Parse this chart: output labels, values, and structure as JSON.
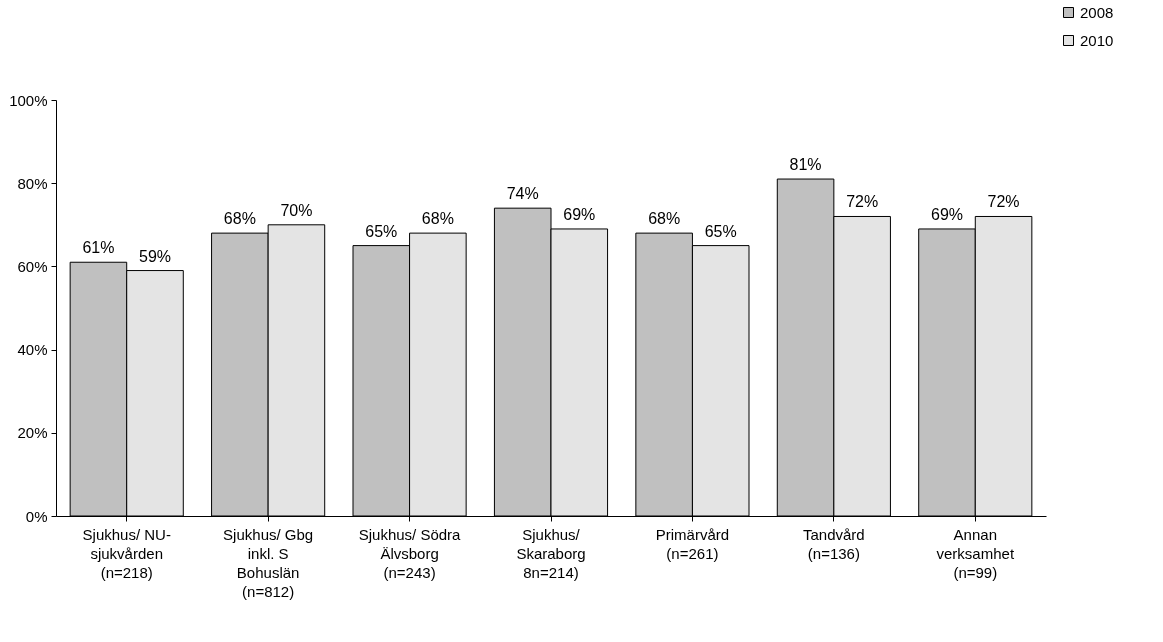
{
  "chart_data": {
    "type": "bar",
    "categories": [
      "Sjukhus/ NU-\nsjukvården\n(n=218)",
      "Sjukhus/ Gbg\ninkl. S\nBohuslän\n(n=812)",
      "Sjukhus/ Södra\nÄlvsborg\n(n=243)",
      "Sjukhus/\nSkaraborg\n8n=214)",
      "Primärvård\n(n=261)",
      "Tandvård\n(n=136)",
      "Annan\nverksamhet\n(n=99)"
    ],
    "series": [
      {
        "name": "2008",
        "color": "#c0c0c0",
        "values": [
          61,
          68,
          65,
          74,
          68,
          81,
          69
        ],
        "value_labels": [
          "61%",
          "68%",
          "65%",
          "74%",
          "68%",
          "81%",
          "69%"
        ]
      },
      {
        "name": "2010",
        "color": "#e4e4e4",
        "values": [
          59,
          70,
          68,
          69,
          65,
          72,
          72
        ],
        "value_labels": [
          "59%",
          "70%",
          "68%",
          "69%",
          "65%",
          "72%",
          "72%"
        ]
      }
    ],
    "ylim": [
      0,
      100
    ],
    "yticks": [
      {
        "value": 0,
        "label": "0%"
      },
      {
        "value": 20,
        "label": "20%"
      },
      {
        "value": 40,
        "label": "40%"
      },
      {
        "value": 60,
        "label": "60%"
      },
      {
        "value": 80,
        "label": "80%"
      },
      {
        "value": 100,
        "label": "100%"
      }
    ],
    "grid": false,
    "legend": "top right"
  }
}
